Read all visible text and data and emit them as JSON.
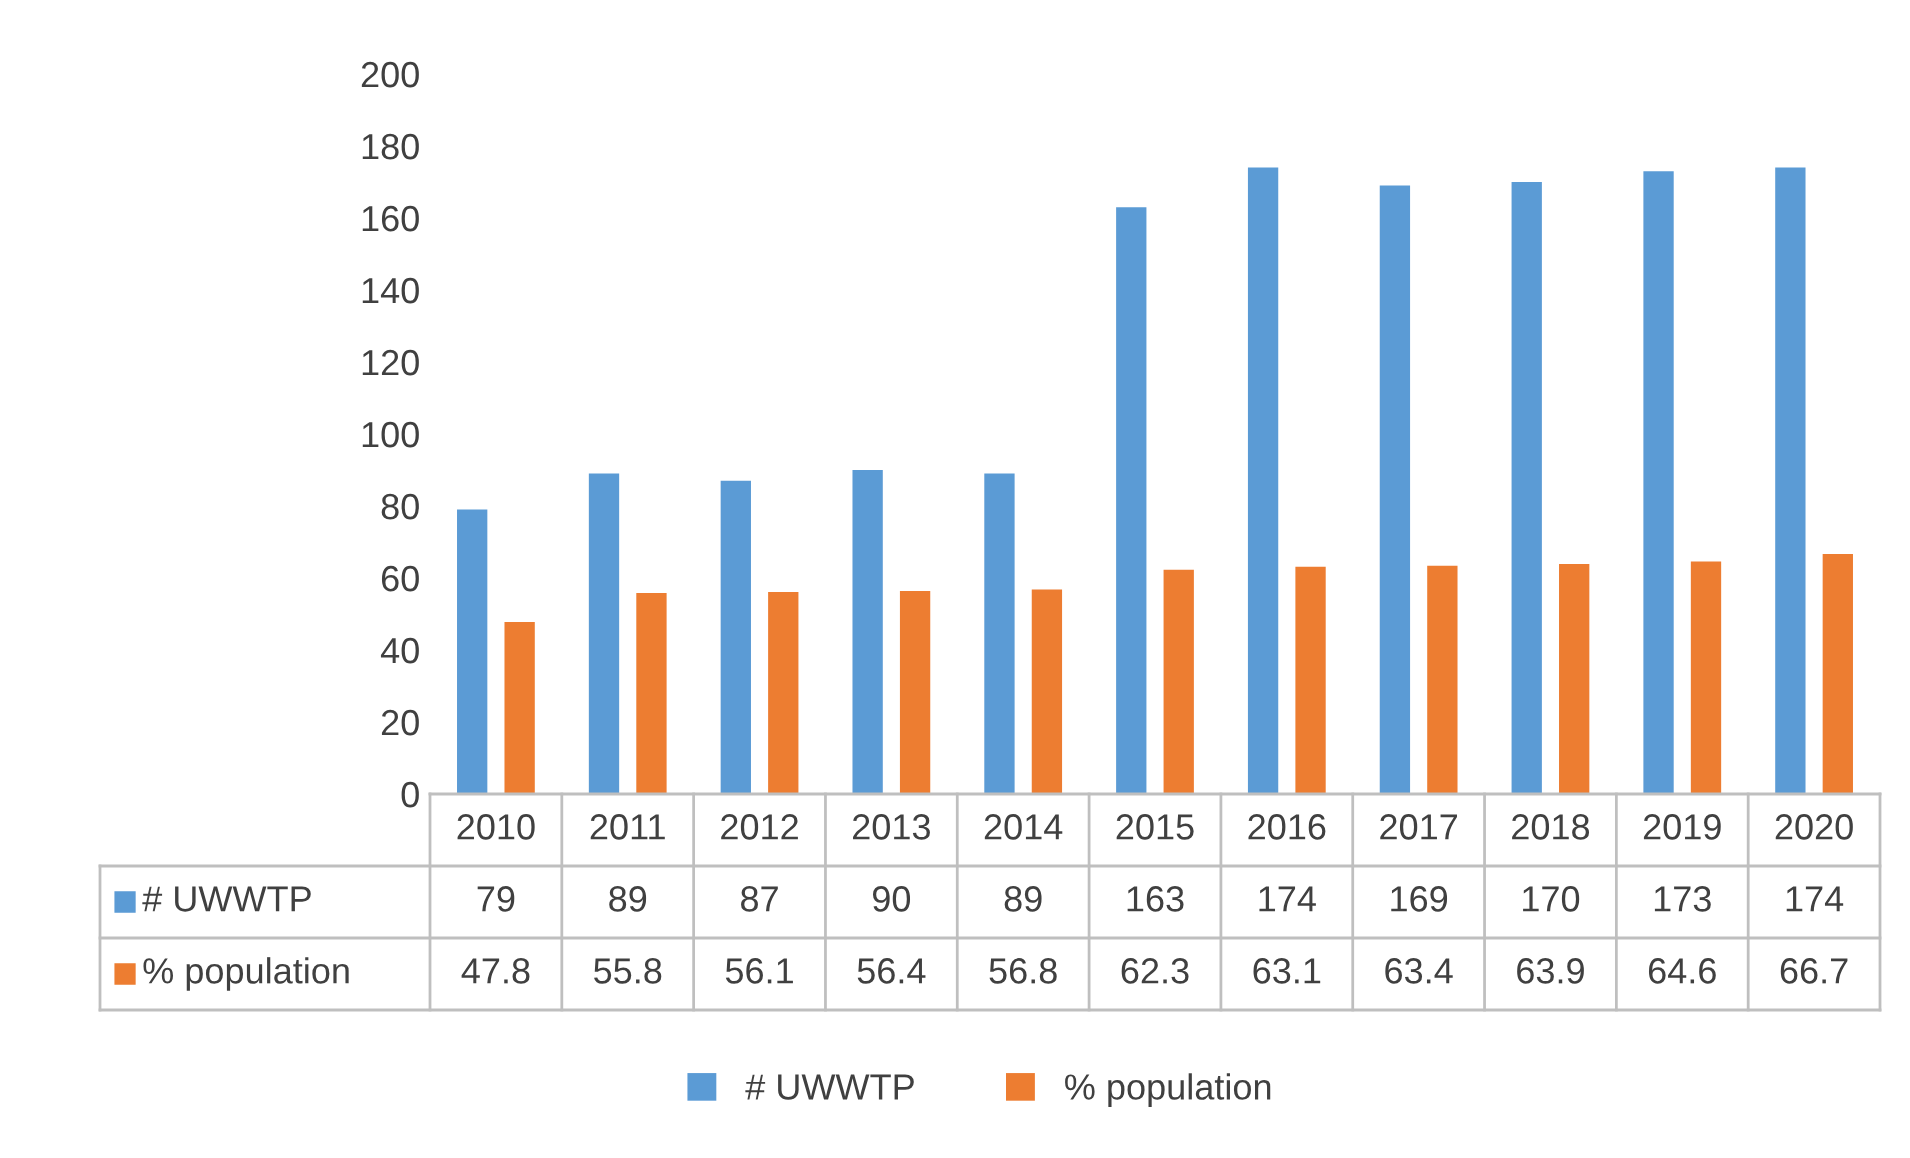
{
  "chart_data": {
    "type": "bar",
    "categories": [
      "2010",
      "2011",
      "2012",
      "2013",
      "2014",
      "2015",
      "2016",
      "2017",
      "2018",
      "2019",
      "2020"
    ],
    "series": [
      {
        "name": "# UWWTP",
        "color": "#5b9bd5",
        "values": [
          79,
          89,
          87,
          90,
          89,
          163,
          174,
          169,
          170,
          173,
          174
        ]
      },
      {
        "name": "% population",
        "color": "#ed7d31",
        "values": [
          47.8,
          55.8,
          56.1,
          56.4,
          56.8,
          62.3,
          63.1,
          63.4,
          63.9,
          64.6,
          66.7
        ]
      }
    ],
    "ylim": [
      0,
      200
    ],
    "yticks": [
      0,
      20,
      40,
      60,
      80,
      100,
      120,
      140,
      160,
      180,
      200
    ],
    "data_labels": true,
    "grid": false,
    "legend": "bottom"
  }
}
